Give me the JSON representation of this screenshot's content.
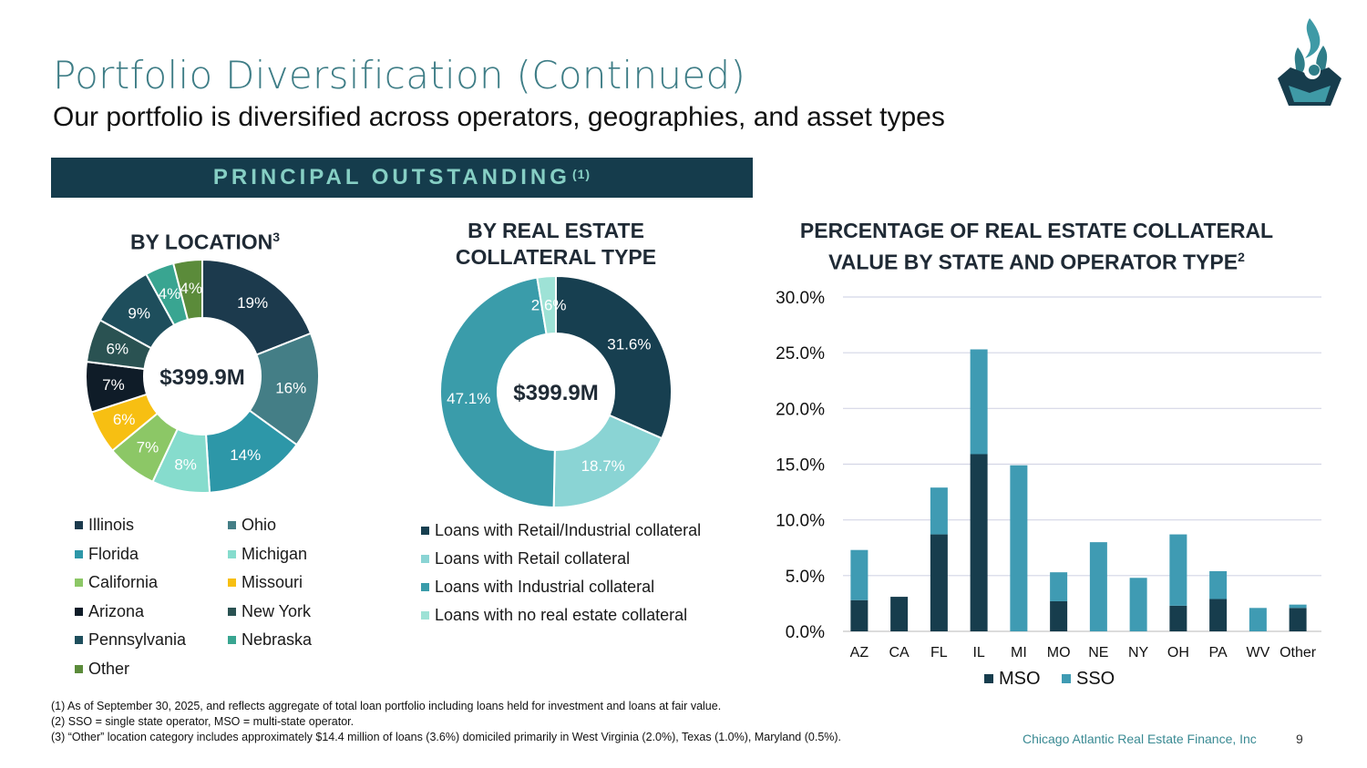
{
  "header": {
    "title": "Portfolio Diversification (Continued)",
    "subtitle": "Our portfolio is diversified across operators, geographies, and asset types"
  },
  "banner": {
    "label": "PRINCIPAL OUTSTANDING",
    "superscript": "(1)"
  },
  "colors": {
    "dark_navy": "#153c4c",
    "teal_title": "#3e7d86",
    "banner_text": "#86cfc4",
    "mso": "#173d4d",
    "sso": "#3f9bb3"
  },
  "chart_data": [
    {
      "type": "pie",
      "donut": true,
      "title": "BY LOCATION",
      "title_superscript": "3",
      "center_label": "$399.9M",
      "labels": [
        "Illinois",
        "Ohio",
        "Florida",
        "Michigan",
        "California",
        "Missouri",
        "Arizona",
        "New York",
        "Pennsylvania",
        "Nebraska",
        "Other"
      ],
      "values": [
        19,
        16,
        14,
        8,
        7,
        6,
        7,
        6,
        9,
        4,
        4
      ],
      "value_labels": [
        "19%",
        "16%",
        "14%",
        "8%",
        "7%",
        "6%",
        "7%",
        "6%",
        "9%",
        "4%",
        "4%"
      ],
      "colors": [
        "#1c3a4d",
        "#447e86",
        "#2d97a8",
        "#86dccd",
        "#8cc766",
        "#f7bf12",
        "#0f1c28",
        "#2a5252",
        "#1e4e5c",
        "#39a591",
        "#5b8b3a"
      ],
      "label_colors": [
        "#ffffff",
        "#ffffff",
        "#ffffff",
        "#ffffff",
        "#ffffff",
        "#ffffff",
        "#ffffff",
        "#ffffff",
        "#ffffff",
        "#ffffff",
        "#ffffff"
      ],
      "legend_order": [
        "Illinois",
        "Ohio",
        "Florida",
        "Michigan",
        "California",
        "Missouri",
        "Arizona",
        "New York",
        "Pennsylvania",
        "Nebraska",
        "Other"
      ]
    },
    {
      "type": "pie",
      "donut": true,
      "title": "BY REAL ESTATE COLLATERAL TYPE",
      "title_lines": [
        "BY REAL ESTATE",
        "COLLATERAL TYPE"
      ],
      "center_label": "$399.9M",
      "labels": [
        "Loans with Retail/Industrial collateral",
        "Loans with Retail collateral",
        "Loans with Industrial collateral",
        "Loans with no real estate collateral"
      ],
      "values": [
        31.6,
        18.7,
        47.1,
        2.6
      ],
      "value_labels": [
        "31.6%",
        "18.7%",
        "47.1%",
        "2.6%"
      ],
      "colors": [
        "#173f50",
        "#8ad4d4",
        "#3a9caa",
        "#9ee2d6"
      ]
    },
    {
      "type": "bar",
      "stacked": true,
      "title": "PERCENTAGE OF REAL ESTATE COLLATERAL VALUE BY STATE AND OPERATOR TYPE",
      "title_lines": [
        "PERCENTAGE OF REAL ESTATE COLLATERAL",
        "VALUE BY STATE AND OPERATOR TYPE"
      ],
      "title_superscript": "2",
      "categories": [
        "AZ",
        "CA",
        "FL",
        "IL",
        "MI",
        "MO",
        "NE",
        "NY",
        "OH",
        "PA",
        "WV",
        "Other"
      ],
      "series": [
        {
          "name": "MSO",
          "values": [
            2.8,
            3.1,
            8.7,
            15.9,
            0,
            2.7,
            0,
            0,
            2.3,
            2.9,
            0,
            2.1
          ]
        },
        {
          "name": "SSO",
          "values": [
            4.5,
            0,
            4.2,
            9.4,
            14.9,
            2.6,
            8.0,
            4.8,
            6.4,
            2.5,
            2.1,
            0.3
          ]
        }
      ],
      "ylim": [
        0,
        30
      ],
      "yticks": [
        "0.0%",
        "5.0%",
        "10.0%",
        "15.0%",
        "20.0%",
        "25.0%",
        "30.0%"
      ],
      "legend_position": "bottom",
      "grid": true
    }
  ],
  "footnotes": [
    "(1) As of September 30, 2025, and reflects aggregate of total loan portfolio including loans held for investment and loans at fair value.",
    "(2) SSO = single state operator, MSO = multi-state operator.",
    "(3) “Other” location category includes approximately $14.4 million of loans (3.6%) domiciled primarily in West Virginia (2.0%), Texas (1.0%), Maryland (0.5%)."
  ],
  "footer": {
    "company": "Chicago Atlantic Real Estate Finance, Inc",
    "page": "9"
  }
}
